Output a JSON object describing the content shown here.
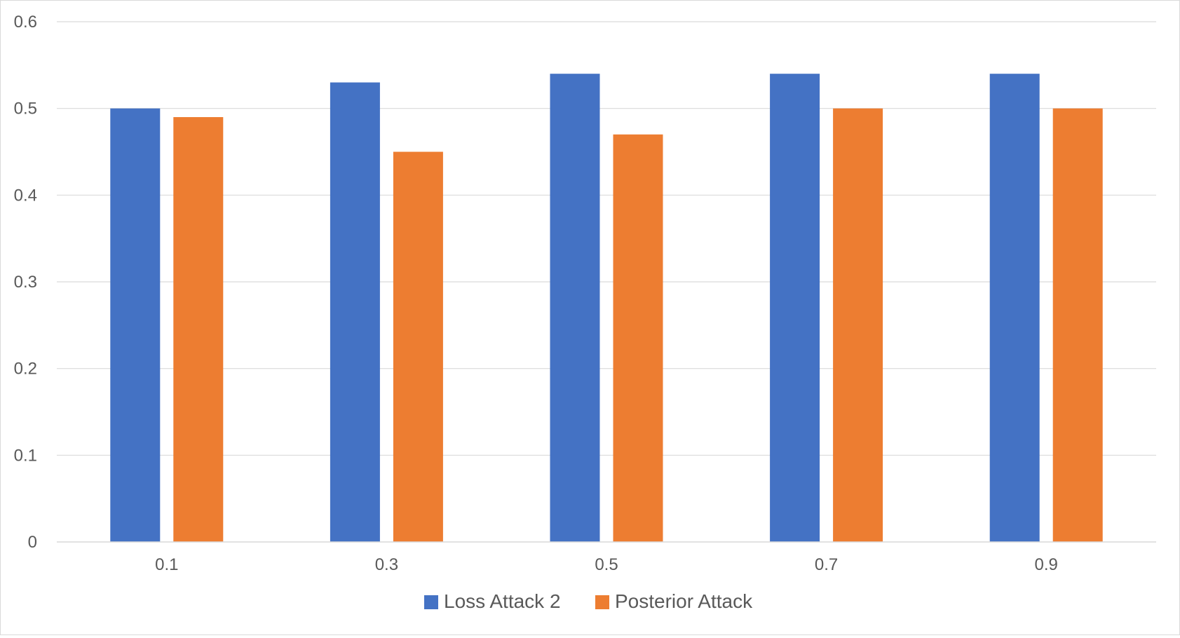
{
  "chart_data": {
    "type": "bar",
    "title": "",
    "xlabel": "",
    "ylabel": "",
    "categories": [
      "0.1",
      "0.3",
      "0.5",
      "0.7",
      "0.9"
    ],
    "series": [
      {
        "name": "Loss Attack 2",
        "color": "#4472C4",
        "values": [
          0.5,
          0.53,
          0.54,
          0.54,
          0.54
        ]
      },
      {
        "name": "Posterior Attack",
        "color": "#ED7D31",
        "values": [
          0.49,
          0.45,
          0.47,
          0.5,
          0.5
        ]
      }
    ],
    "ylim": [
      0,
      0.6
    ],
    "yticks": [
      "0",
      "0.1",
      "0.2",
      "0.3",
      "0.4",
      "0.5",
      "0.6"
    ],
    "grid": true,
    "legend_position": "bottom"
  }
}
